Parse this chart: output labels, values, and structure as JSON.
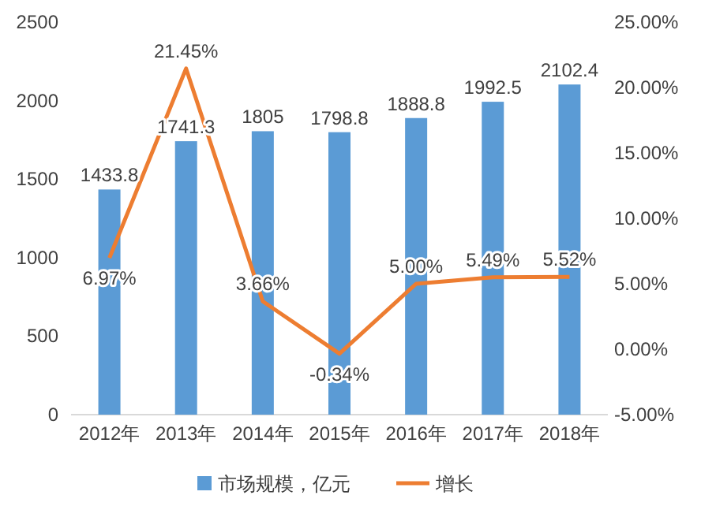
{
  "chart_data": {
    "type": "bar",
    "categories": [
      "2012年",
      "2013年",
      "2014年",
      "2015年",
      "2016年",
      "2017年",
      "2018年"
    ],
    "series": [
      {
        "name": "市场规模，亿元",
        "color": "#5b9bd5",
        "values": [
          1433.8,
          1741.3,
          1805,
          1798.8,
          1888.8,
          1992.5,
          2102.4
        ],
        "value_labels": [
          "1433.8",
          "1741.3",
          "1805",
          "1798.8",
          "1888.8",
          "1992.5",
          "2102.4"
        ]
      },
      {
        "name": "增长",
        "type": "line",
        "axis": "y2",
        "color": "#ed7d31",
        "values": [
          6.97,
          21.45,
          3.66,
          -0.34,
          5.0,
          5.49,
          5.52
        ],
        "value_labels": [
          "6.97%",
          "21.45%",
          "3.66%",
          "-0.34%",
          "5.00%",
          "5.49%",
          "5.52%"
        ]
      }
    ],
    "ylim": [
      0,
      2500
    ],
    "yticks": [
      0,
      500,
      1000,
      1500,
      2000,
      2500
    ],
    "y2lim": [
      -5,
      25
    ],
    "y2ticks": [
      {
        "value": -5,
        "label": "-5.00%"
      },
      {
        "value": 0,
        "label": "0.00%"
      },
      {
        "value": 5,
        "label": "5.00%"
      },
      {
        "value": 10,
        "label": "10.00%"
      },
      {
        "value": 15,
        "label": "15.00%"
      },
      {
        "value": 20,
        "label": "20.00%"
      },
      {
        "value": 25,
        "label": "25.00%"
      }
    ],
    "legend": "bottom",
    "marker": "none",
    "line_style": "solid"
  }
}
